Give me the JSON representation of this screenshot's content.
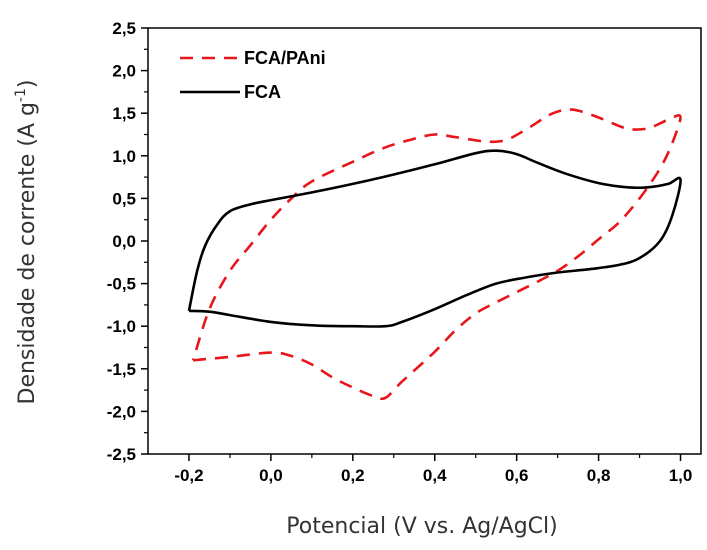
{
  "chart_data": {
    "type": "line",
    "title": "",
    "xlabel": "Potencial (V vs. Ag/AgCl)",
    "ylabel_main": "Densidade de corrente (A g",
    "ylabel_sup": "-1",
    "ylabel_end": ")",
    "xlim": [
      -0.3,
      1.05
    ],
    "ylim": [
      -2.5,
      2.5
    ],
    "x_ticks": [
      -0.2,
      0.0,
      0.2,
      0.4,
      0.6,
      0.8,
      1.0
    ],
    "x_tick_labels": [
      "-0,2",
      "0,0",
      "0,2",
      "0,4",
      "0,6",
      "0,8",
      "1,0"
    ],
    "y_ticks": [
      -2.5,
      -2.0,
      -1.5,
      -1.0,
      -0.5,
      0.0,
      0.5,
      1.0,
      1.5,
      2.0,
      2.5
    ],
    "y_tick_labels": [
      "-2,5",
      "-2,0",
      "-1,5",
      "-1,0",
      "-0,5",
      "0,0",
      "0,5",
      "1,0",
      "1,5",
      "2,0",
      "2,5"
    ],
    "grid": false,
    "legend_position": "top-left",
    "series": [
      {
        "name": "FCA/PAni",
        "color": "#e8161b",
        "style": "dashed",
        "points": [
          [
            -0.19,
            -1.4
          ],
          [
            -0.1,
            -1.36
          ],
          [
            0.0,
            -1.31
          ],
          [
            0.05,
            -1.35
          ],
          [
            0.1,
            -1.45
          ],
          [
            0.15,
            -1.6
          ],
          [
            0.2,
            -1.72
          ],
          [
            0.25,
            -1.82
          ],
          [
            0.28,
            -1.84
          ],
          [
            0.32,
            -1.65
          ],
          [
            0.4,
            -1.3
          ],
          [
            0.45,
            -1.05
          ],
          [
            0.5,
            -0.85
          ],
          [
            0.55,
            -0.72
          ],
          [
            0.6,
            -0.6
          ],
          [
            0.65,
            -0.48
          ],
          [
            0.7,
            -0.35
          ],
          [
            0.75,
            -0.18
          ],
          [
            0.8,
            0.02
          ],
          [
            0.85,
            0.22
          ],
          [
            0.9,
            0.5
          ],
          [
            0.95,
            0.85
          ],
          [
            0.98,
            1.15
          ],
          [
            1.0,
            1.45
          ],
          [
            0.98,
            1.45
          ],
          [
            0.95,
            1.38
          ],
          [
            0.92,
            1.32
          ],
          [
            0.88,
            1.31
          ],
          [
            0.85,
            1.35
          ],
          [
            0.8,
            1.45
          ],
          [
            0.75,
            1.53
          ],
          [
            0.72,
            1.54
          ],
          [
            0.68,
            1.48
          ],
          [
            0.62,
            1.3
          ],
          [
            0.57,
            1.18
          ],
          [
            0.52,
            1.17
          ],
          [
            0.45,
            1.22
          ],
          [
            0.4,
            1.25
          ],
          [
            0.35,
            1.2
          ],
          [
            0.28,
            1.1
          ],
          [
            0.2,
            0.93
          ],
          [
            0.1,
            0.7
          ],
          [
            0.05,
            0.5
          ],
          [
            0.0,
            0.25
          ],
          [
            -0.05,
            -0.05
          ],
          [
            -0.1,
            -0.35
          ],
          [
            -0.15,
            -0.8
          ],
          [
            -0.19,
            -1.4
          ]
        ]
      },
      {
        "name": "FCA",
        "color": "#000000",
        "style": "solid",
        "points": [
          [
            -0.2,
            -0.82
          ],
          [
            -0.15,
            -0.83
          ],
          [
            -0.1,
            -0.87
          ],
          [
            0.0,
            -0.95
          ],
          [
            0.1,
            -0.99
          ],
          [
            0.2,
            -1.0
          ],
          [
            0.28,
            -1.0
          ],
          [
            0.32,
            -0.95
          ],
          [
            0.4,
            -0.8
          ],
          [
            0.48,
            -0.63
          ],
          [
            0.55,
            -0.5
          ],
          [
            0.62,
            -0.43
          ],
          [
            0.7,
            -0.37
          ],
          [
            0.78,
            -0.33
          ],
          [
            0.85,
            -0.28
          ],
          [
            0.9,
            -0.2
          ],
          [
            0.95,
            0.0
          ],
          [
            0.98,
            0.3
          ],
          [
            1.0,
            0.72
          ],
          [
            0.97,
            0.67
          ],
          [
            0.92,
            0.63
          ],
          [
            0.87,
            0.63
          ],
          [
            0.8,
            0.68
          ],
          [
            0.72,
            0.79
          ],
          [
            0.65,
            0.92
          ],
          [
            0.6,
            1.02
          ],
          [
            0.55,
            1.06
          ],
          [
            0.5,
            1.03
          ],
          [
            0.4,
            0.9
          ],
          [
            0.3,
            0.78
          ],
          [
            0.2,
            0.67
          ],
          [
            0.1,
            0.57
          ],
          [
            0.0,
            0.48
          ],
          [
            -0.05,
            0.43
          ],
          [
            -0.1,
            0.35
          ],
          [
            -0.13,
            0.2
          ],
          [
            -0.16,
            -0.05
          ],
          [
            -0.18,
            -0.35
          ],
          [
            -0.2,
            -0.82
          ]
        ]
      }
    ]
  }
}
